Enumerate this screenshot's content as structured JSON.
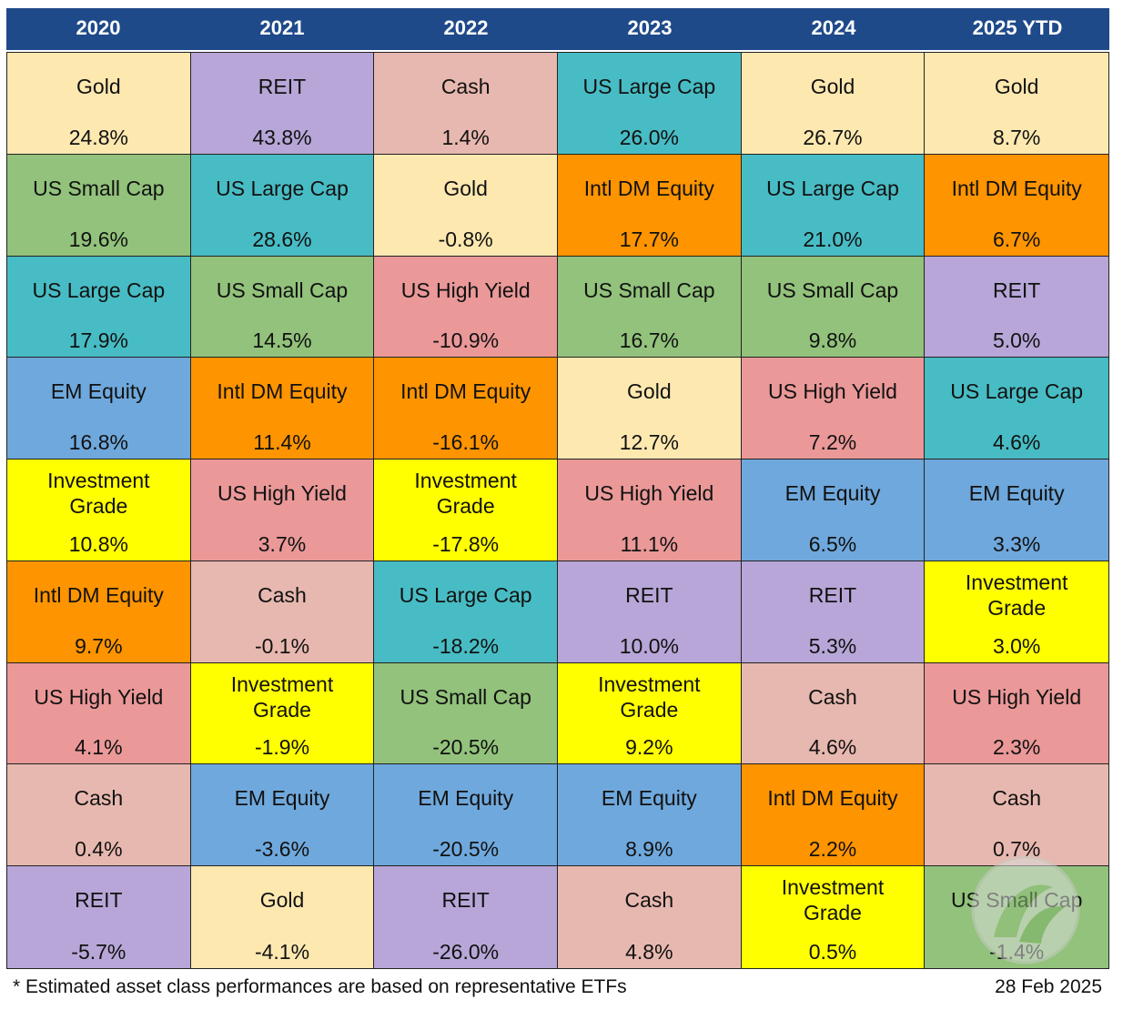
{
  "chart_data": {
    "type": "table",
    "columns": [
      "2020",
      "2021",
      "2022",
      "2023",
      "2024",
      "2025 YTD"
    ],
    "colors": {
      "Gold": "#fde8b0",
      "REIT": "#b7a6d7",
      "Cash": "#e7b8af",
      "US Large Cap": "#48bcc4",
      "US Small Cap": "#92c27b",
      "Intl DM Equity": "#fd9400",
      "US High Yield": "#ea9898",
      "EM Equity": "#6fa8dc",
      "Investment Grade": "#ffff00"
    },
    "rankings": [
      [
        {
          "asset": "Gold",
          "value": "24.8%"
        },
        {
          "asset": "US Small Cap",
          "value": "19.6%"
        },
        {
          "asset": "US Large Cap",
          "value": "17.9%"
        },
        {
          "asset": "EM Equity",
          "value": "16.8%"
        },
        {
          "asset": "Investment Grade",
          "value": "10.8%"
        },
        {
          "asset": "Intl DM Equity",
          "value": "9.7%"
        },
        {
          "asset": "US High Yield",
          "value": "4.1%"
        },
        {
          "asset": "Cash",
          "value": "0.4%"
        },
        {
          "asset": "REIT",
          "value": "-5.7%"
        }
      ],
      [
        {
          "asset": "REIT",
          "value": "43.8%"
        },
        {
          "asset": "US Large Cap",
          "value": "28.6%"
        },
        {
          "asset": "US Small Cap",
          "value": "14.5%"
        },
        {
          "asset": "Intl DM Equity",
          "value": "11.4%"
        },
        {
          "asset": "US High Yield",
          "value": "3.7%"
        },
        {
          "asset": "Cash",
          "value": "-0.1%"
        },
        {
          "asset": "Investment Grade",
          "value": "-1.9%"
        },
        {
          "asset": "EM Equity",
          "value": "-3.6%"
        },
        {
          "asset": "Gold",
          "value": "-4.1%"
        }
      ],
      [
        {
          "asset": "Cash",
          "value": "1.4%"
        },
        {
          "asset": "Gold",
          "value": "-0.8%"
        },
        {
          "asset": "US High Yield",
          "value": "-10.9%"
        },
        {
          "asset": "Intl DM Equity",
          "value": "-16.1%"
        },
        {
          "asset": "Investment Grade",
          "value": "-17.8%"
        },
        {
          "asset": "US Large Cap",
          "value": "-18.2%"
        },
        {
          "asset": "US Small Cap",
          "value": "-20.5%"
        },
        {
          "asset": "EM Equity",
          "value": "-20.5%"
        },
        {
          "asset": "REIT",
          "value": "-26.0%"
        }
      ],
      [
        {
          "asset": "US Large Cap",
          "value": "26.0%"
        },
        {
          "asset": "Intl DM Equity",
          "value": "17.7%"
        },
        {
          "asset": "US Small Cap",
          "value": "16.7%"
        },
        {
          "asset": "Gold",
          "value": "12.7%"
        },
        {
          "asset": "US High Yield",
          "value": "11.1%"
        },
        {
          "asset": "REIT",
          "value": "10.0%"
        },
        {
          "asset": "Investment Grade",
          "value": "9.2%"
        },
        {
          "asset": "EM Equity",
          "value": "8.9%"
        },
        {
          "asset": "Cash",
          "value": "4.8%"
        }
      ],
      [
        {
          "asset": "Gold",
          "value": "26.7%"
        },
        {
          "asset": "US Large Cap",
          "value": "21.0%"
        },
        {
          "asset": "US Small Cap",
          "value": "9.8%"
        },
        {
          "asset": "US High Yield",
          "value": "7.2%"
        },
        {
          "asset": "EM Equity",
          "value": "6.5%"
        },
        {
          "asset": "REIT",
          "value": "5.3%"
        },
        {
          "asset": "Cash",
          "value": "4.6%"
        },
        {
          "asset": "Intl DM Equity",
          "value": "2.2%"
        },
        {
          "asset": "Investment Grade",
          "value": "0.5%"
        }
      ],
      [
        {
          "asset": "Gold",
          "value": "8.7%"
        },
        {
          "asset": "Intl DM Equity",
          "value": "6.7%"
        },
        {
          "asset": "REIT",
          "value": "5.0%"
        },
        {
          "asset": "US Large Cap",
          "value": "4.6%"
        },
        {
          "asset": "EM Equity",
          "value": "3.3%"
        },
        {
          "asset": "Investment Grade",
          "value": "3.0%"
        },
        {
          "asset": "US High Yield",
          "value": "2.3%"
        },
        {
          "asset": "Cash",
          "value": "0.7%"
        },
        {
          "asset": "US Small Cap",
          "value": "-1.4%"
        }
      ]
    ]
  },
  "footer": {
    "note": "* Estimated asset class performances are based on representative ETFs",
    "date": "28 Feb 2025"
  },
  "header_color": "#1f4a8a"
}
